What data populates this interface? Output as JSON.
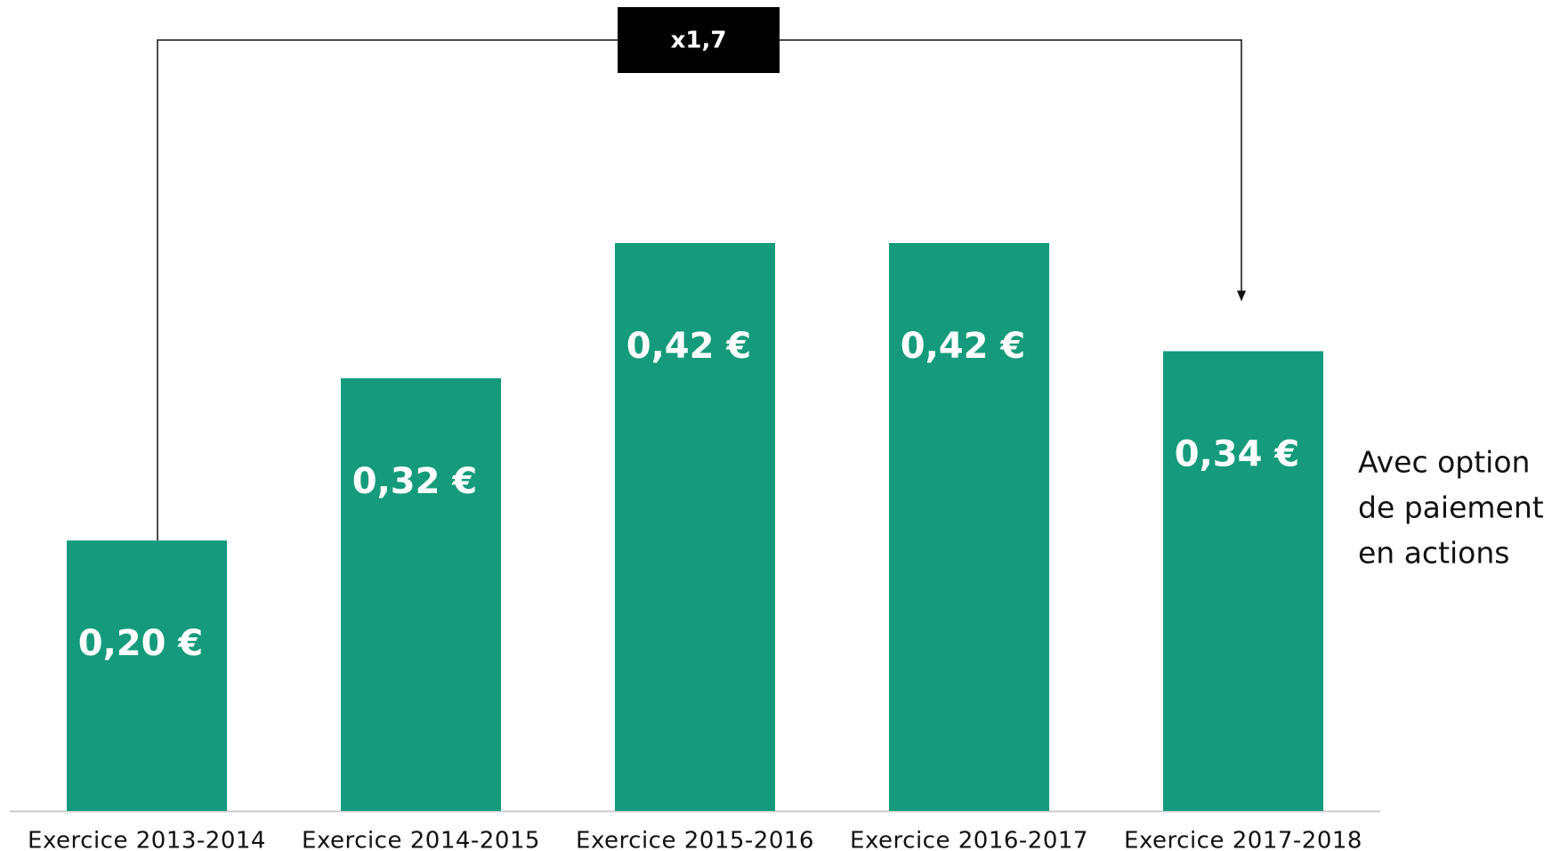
{
  "chart_data": {
    "type": "bar",
    "categories": [
      "Exercice 2013-2014",
      "Exercice 2014-2015",
      "Exercice 2015-2016",
      "Exercice 2016-2017",
      "Exercice 2017-2018"
    ],
    "values": [
      0.2,
      0.32,
      0.42,
      0.42,
      0.34
    ],
    "value_labels": [
      "0,20 €",
      "0,32 €",
      "0,42 €",
      "0,42 €",
      "0,34 €"
    ],
    "color": "#159b7b",
    "annotation": "x1,7",
    "side_note": [
      "Avec option",
      "de paiement",
      "en actions"
    ]
  }
}
